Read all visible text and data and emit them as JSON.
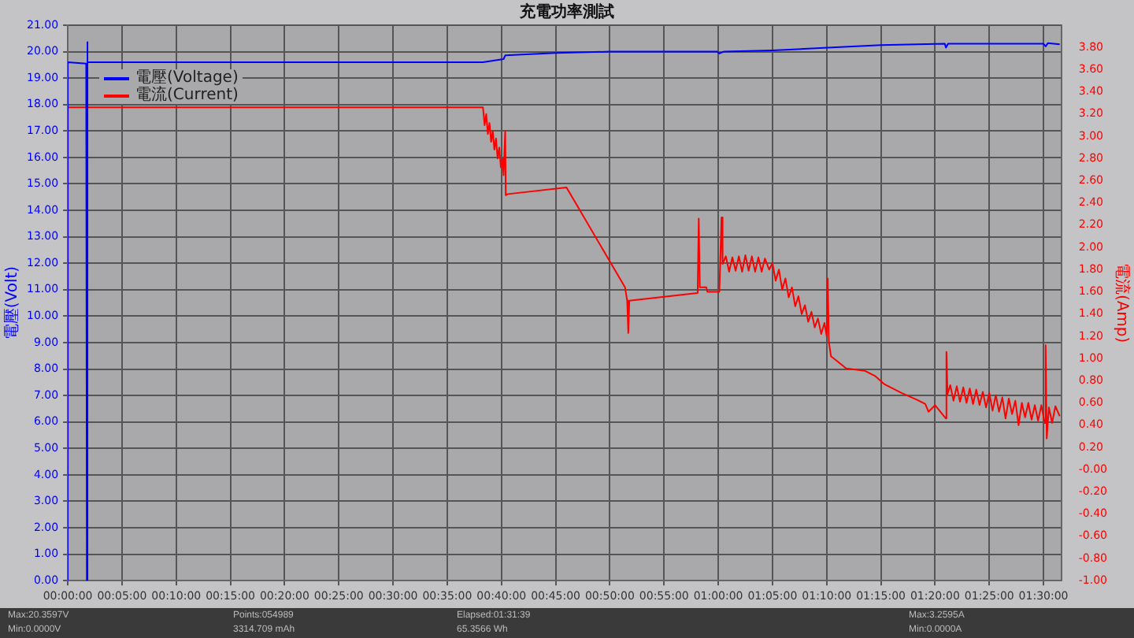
{
  "chart_data": {
    "type": "line",
    "title": "充電功率測試",
    "ylabel": "電壓(Volt)",
    "y2label": "電流(Amp)",
    "xlim": [
      0,
      1.5275
    ],
    "xticks": [
      {
        "value": 0,
        "label": "00:00:00"
      },
      {
        "value": 0.0833,
        "label": "00:05:00"
      },
      {
        "value": 0.1667,
        "label": "00:10:00"
      },
      {
        "value": 0.25,
        "label": "00:15:00"
      },
      {
        "value": 0.3333,
        "label": "00:20:00"
      },
      {
        "value": 0.4167,
        "label": "00:25:00"
      },
      {
        "value": 0.5,
        "label": "00:30:00"
      },
      {
        "value": 0.5833,
        "label": "00:35:00"
      },
      {
        "value": 0.6667,
        "label": "00:40:00"
      },
      {
        "value": 0.75,
        "label": "00:45:00"
      },
      {
        "value": 0.8333,
        "label": "00:50:00"
      },
      {
        "value": 0.9167,
        "label": "00:55:00"
      },
      {
        "value": 1,
        "label": "01:00:00"
      },
      {
        "value": 1.0833,
        "label": "01:05:00"
      },
      {
        "value": 1.1667,
        "label": "01:10:00"
      },
      {
        "value": 1.25,
        "label": "01:15:00"
      },
      {
        "value": 1.3333,
        "label": "01:20:00"
      },
      {
        "value": 1.4167,
        "label": "01:25:00"
      },
      {
        "value": 1.5,
        "label": "01:30:00"
      }
    ],
    "ylim": [
      0,
      21
    ],
    "yticks": [
      {
        "value": 0,
        "label": "0.00"
      },
      {
        "value": 1,
        "label": "1.00"
      },
      {
        "value": 2,
        "label": "2.00"
      },
      {
        "value": 3,
        "label": "3.00"
      },
      {
        "value": 4,
        "label": "4.00"
      },
      {
        "value": 5,
        "label": "5.00"
      },
      {
        "value": 6,
        "label": "6.00"
      },
      {
        "value": 7,
        "label": "7.00"
      },
      {
        "value": 8,
        "label": "8.00"
      },
      {
        "value": 9,
        "label": "9.00"
      },
      {
        "value": 10,
        "label": "10.00"
      },
      {
        "value": 11,
        "label": "11.00"
      },
      {
        "value": 12,
        "label": "12.00"
      },
      {
        "value": 13,
        "label": "13.00"
      },
      {
        "value": 14,
        "label": "14.00"
      },
      {
        "value": 15,
        "label": "15.00"
      },
      {
        "value": 16,
        "label": "16.00"
      },
      {
        "value": 17,
        "label": "17.00"
      },
      {
        "value": 18,
        "label": "18.00"
      },
      {
        "value": 19,
        "label": "19.00"
      },
      {
        "value": 20,
        "label": "20.00"
      },
      {
        "value": 21,
        "label": "21.00"
      }
    ],
    "y2lim": [
      -1,
      4
    ],
    "y2ticks": [
      {
        "value": -1,
        "label": "-1.00"
      },
      {
        "value": -0.8,
        "label": "-0.80"
      },
      {
        "value": -0.6,
        "label": "-0.60"
      },
      {
        "value": -0.4,
        "label": "-0.40"
      },
      {
        "value": -0.2,
        "label": "-0.20"
      },
      {
        "value": 0,
        "label": "-0.00"
      },
      {
        "value": 0.2,
        "label": "0.20"
      },
      {
        "value": 0.4,
        "label": "0.40"
      },
      {
        "value": 0.6,
        "label": "0.60"
      },
      {
        "value": 0.8,
        "label": "0.80"
      },
      {
        "value": 1,
        "label": "1.00"
      },
      {
        "value": 1.2,
        "label": "1.20"
      },
      {
        "value": 1.4,
        "label": "1.40"
      },
      {
        "value": 1.6,
        "label": "1.60"
      },
      {
        "value": 1.8,
        "label": "1.80"
      },
      {
        "value": 2,
        "label": "2.00"
      },
      {
        "value": 2.2,
        "label": "2.20"
      },
      {
        "value": 2.4,
        "label": "2.40"
      },
      {
        "value": 2.6,
        "label": "2.60"
      },
      {
        "value": 2.8,
        "label": "2.80"
      },
      {
        "value": 3,
        "label": "3.00"
      },
      {
        "value": 3.2,
        "label": "3.20"
      },
      {
        "value": 3.4,
        "label": "3.40"
      },
      {
        "value": 3.6,
        "label": "3.60"
      },
      {
        "value": 3.8,
        "label": "3.80"
      }
    ],
    "grid": true,
    "legend": "top left",
    "marker": "none",
    "line_style": "solid",
    "series": [
      {
        "name": "電壓(Voltage)",
        "color": "#0000ff",
        "x": [
          0,
          0,
          0.0283,
          0.0293,
          0.0297,
          0.0308,
          0.6383,
          0.67,
          0.6725,
          0.75,
          0.8333,
          0.9983,
          1.0017,
          1.0083,
          1.0833,
          1.1683,
          1.25,
          1.3483,
          1.35,
          1.3533,
          1.5,
          1.5033,
          1.5067,
          1.525
        ],
        "values": [
          0,
          19.6,
          19.55,
          0,
          20.36,
          19.6,
          19.6,
          19.72,
          19.86,
          19.95,
          20.0,
          20.0,
          19.93,
          20.0,
          20.05,
          20.15,
          20.25,
          20.3,
          20.15,
          20.3,
          20.3,
          20.2,
          20.32,
          20.28
        ]
      },
      {
        "name": "電流(Current)",
        "color": "#ff0000",
        "axis": "y2",
        "x": [
          0,
          0,
          0.0293,
          0.0293,
          0.03,
          0.6383,
          0.6408,
          0.6433,
          0.6458,
          0.6483,
          0.6508,
          0.6533,
          0.6558,
          0.6583,
          0.6608,
          0.6633,
          0.6658,
          0.6683,
          0.67,
          0.6725,
          0.6733,
          0.6767,
          0.7667,
          0.8567,
          0.86,
          0.8617,
          0.8633,
          0.9683,
          0.97,
          0.9717,
          0.9817,
          0.9833,
          1.0017,
          1.005,
          1.0067,
          1.0117,
          1.0167,
          1.0217,
          1.0267,
          1.0317,
          1.0367,
          1.0417,
          1.0467,
          1.0517,
          1.0567,
          1.0617,
          1.0667,
          1.0717,
          1.0783,
          1.0833,
          1.0883,
          1.0933,
          1.0983,
          1.1033,
          1.1083,
          1.1133,
          1.1183,
          1.1233,
          1.1283,
          1.1333,
          1.1383,
          1.1433,
          1.1483,
          1.1533,
          1.1583,
          1.1633,
          1.1667,
          1.1683,
          1.17,
          1.1733,
          1.1967,
          1.225,
          1.2417,
          1.255,
          1.2817,
          1.305,
          1.3183,
          1.3233,
          1.3333,
          1.35,
          1.3508,
          1.3525,
          1.3567,
          1.3617,
          1.3667,
          1.3717,
          1.3767,
          1.3817,
          1.3867,
          1.3917,
          1.3967,
          1.4017,
          1.4067,
          1.4117,
          1.4167,
          1.4217,
          1.4267,
          1.4317,
          1.4367,
          1.4417,
          1.4467,
          1.4517,
          1.4567,
          1.4617,
          1.4667,
          1.4717,
          1.4767,
          1.4817,
          1.4867,
          1.4917,
          1.4967,
          1.5017,
          1.5033,
          1.505,
          1.5083,
          1.5133,
          1.5183,
          1.525
        ],
        "values": [
          0,
          3.26,
          3.26,
          0,
          3.26,
          3.26,
          3.1,
          3.2,
          3.02,
          3.12,
          2.95,
          3.05,
          2.88,
          2.98,
          2.8,
          2.9,
          2.72,
          2.8,
          2.65,
          3.05,
          2.47,
          2.48,
          2.54,
          1.64,
          1.52,
          1.23,
          1.52,
          1.59,
          2.26,
          1.64,
          1.64,
          1.6,
          1.6,
          2.27,
          1.85,
          1.92,
          1.78,
          1.91,
          1.79,
          1.92,
          1.78,
          1.93,
          1.79,
          1.92,
          1.78,
          1.91,
          1.78,
          1.9,
          1.8,
          1.86,
          1.7,
          1.8,
          1.62,
          1.72,
          1.55,
          1.64,
          1.47,
          1.56,
          1.4,
          1.48,
          1.33,
          1.42,
          1.28,
          1.36,
          1.22,
          1.32,
          1.2,
          1.72,
          1.15,
          1.02,
          0.91,
          0.89,
          0.84,
          0.77,
          0.69,
          0.63,
          0.59,
          0.52,
          0.58,
          0.46,
          1.06,
          0.68,
          0.76,
          0.62,
          0.75,
          0.61,
          0.74,
          0.6,
          0.73,
          0.59,
          0.72,
          0.58,
          0.7,
          0.56,
          0.69,
          0.53,
          0.67,
          0.52,
          0.65,
          0.46,
          0.64,
          0.5,
          0.62,
          0.4,
          0.6,
          0.47,
          0.6,
          0.45,
          0.58,
          0.44,
          0.58,
          0.42,
          1.12,
          0.28,
          0.56,
          0.42,
          0.57,
          0.48
        ]
      }
    ],
    "annotations": [
      "Max:20.3597V",
      "Min:0.0000V",
      "Points:054989",
      "3314.709 mAh",
      "Elapsed:01:31:39",
      "65.3566 Wh",
      "Max:3.2595A",
      "Min:0.0000A"
    ]
  }
}
